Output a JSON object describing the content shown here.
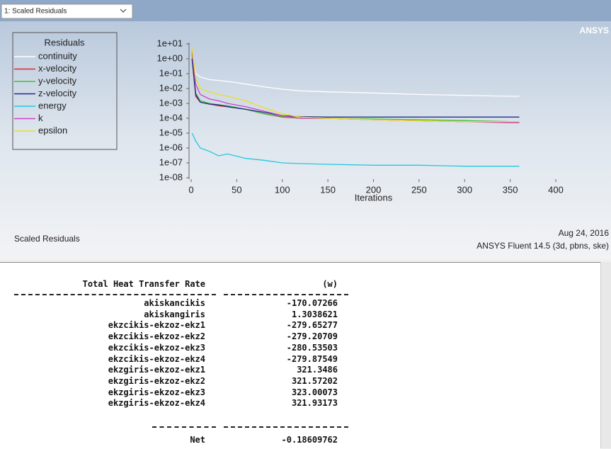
{
  "window": {
    "dropdown": "1: Scaled Residuals",
    "logo": "ANSYS"
  },
  "chart_data": {
    "type": "line",
    "legend_title": "Residuals",
    "xlabel": "Iterations",
    "log_y": true,
    "x": [
      1,
      5,
      10,
      20,
      30,
      40,
      60,
      80,
      100,
      120,
      150,
      200,
      250,
      300,
      350,
      360
    ],
    "series": [
      {
        "name": "continuity",
        "color": "#ffffff",
        "values": [
          2,
          0.1,
          0.06,
          0.04,
          0.035,
          0.03,
          0.02,
          0.013,
          0.009,
          0.007,
          0.006,
          0.005,
          0.004,
          0.0035,
          0.003,
          0.003
        ]
      },
      {
        "name": "x-velocity",
        "color": "#e8202a",
        "values": [
          1,
          0.003,
          0.0012,
          0.0009,
          0.0007,
          0.0006,
          0.0004,
          0.0002,
          0.00012,
          0.0001,
          0.0001,
          8e-05,
          7e-05,
          6e-05,
          6e-05,
          6e-05
        ]
      },
      {
        "name": "y-velocity",
        "color": "#3cc23c",
        "values": [
          2,
          0.005,
          0.0015,
          0.001,
          0.0008,
          0.0007,
          0.0004,
          0.0002,
          0.00013,
          0.0001,
          0.0001,
          9e-05,
          8e-05,
          7e-05,
          6e-05,
          6e-05
        ]
      },
      {
        "name": "z-velocity",
        "color": "#1f2f8a",
        "values": [
          1,
          0.004,
          0.0012,
          0.0009,
          0.0008,
          0.0006,
          0.0004,
          0.00025,
          0.00015,
          0.00013,
          0.00012,
          0.00012,
          0.00012,
          0.00012,
          0.00012,
          0.00012
        ]
      },
      {
        "name": "energy",
        "color": "#22c8e0",
        "values": [
          1e-05,
          3e-06,
          1e-06,
          6e-07,
          3e-07,
          4e-07,
          2e-07,
          1.5e-07,
          1e-07,
          9e-08,
          8e-08,
          7e-08,
          7e-08,
          6e-08,
          6e-08,
          6e-08
        ]
      },
      {
        "name": "k",
        "color": "#d040c8",
        "values": [
          3,
          0.02,
          0.004,
          0.002,
          0.0015,
          0.001,
          0.0006,
          0.0003,
          0.00015,
          0.0001,
          0.0001,
          8e-05,
          7e-05,
          6e-05,
          5e-05,
          5e-05
        ]
      },
      {
        "name": "epsilon",
        "color": "#e8e020",
        "values": [
          5,
          0.05,
          0.01,
          0.006,
          0.004,
          0.003,
          0.0015,
          0.0005,
          0.0002,
          0.00012,
          0.0001,
          8e-05,
          7e-05,
          6e-05,
          6e-05,
          6e-05
        ]
      }
    ],
    "xlim": [
      0,
      400
    ],
    "xticks": [
      0,
      50,
      100,
      150,
      200,
      250,
      300,
      350,
      400
    ],
    "ylim": [
      1e-08,
      10
    ],
    "yticks": [
      {
        "value": 10,
        "label": "1e+01"
      },
      {
        "value": 1,
        "label": "1e+00"
      },
      {
        "value": 0.1,
        "label": "1e-01"
      },
      {
        "value": 0.01,
        "label": "1e-02"
      },
      {
        "value": 0.001,
        "label": "1e-03"
      },
      {
        "value": 0.0001,
        "label": "1e-04"
      },
      {
        "value": 1e-05,
        "label": "1e-05"
      },
      {
        "value": 1e-06,
        "label": "1e-06"
      },
      {
        "value": 1e-07,
        "label": "1e-07"
      },
      {
        "value": 1e-08,
        "label": "1e-08"
      }
    ]
  },
  "footer": {
    "title": "Scaled Residuals",
    "date": "Aug 24, 2016",
    "version": "ANSYS Fluent 14.5 (3d, pbns, ske)"
  },
  "console": {
    "header": {
      "name": "Total Heat Transfer Rate",
      "unit": "(w)"
    },
    "rows": [
      {
        "name": "akiskancikis",
        "value": -170.07266
      },
      {
        "name": "akiskangiris",
        "value": 1.3038621
      },
      {
        "name": "ekzcikis-ekzoz-ekz1",
        "value": -279.65277
      },
      {
        "name": "ekzcikis-ekzoz-ekz2",
        "value": -279.20709
      },
      {
        "name": "ekzcikis-ekzoz-ekz3",
        "value": -280.53503
      },
      {
        "name": "ekzcikis-ekzoz-ekz4",
        "value": -279.87549
      },
      {
        "name": "ekzgiris-ekzoz-ekz1",
        "value": 321.3486
      },
      {
        "name": "ekzgiris-ekzoz-ekz2",
        "value": 321.57202
      },
      {
        "name": "ekzgiris-ekzoz-ekz3",
        "value": 323.00073
      },
      {
        "name": "ekzgiris-ekzoz-ekz4",
        "value": 321.93173
      }
    ],
    "net": {
      "name": "Net",
      "value": -0.18609762
    }
  }
}
